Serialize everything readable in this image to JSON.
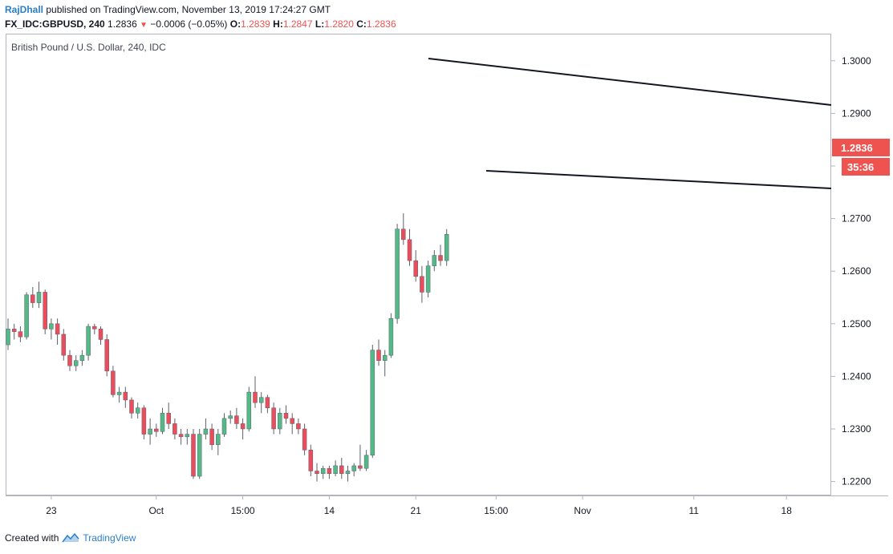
{
  "header": {
    "user": "RajDhall",
    "published": "published on TradingView.com, November 13, 2019 17:24:27 GMT",
    "symbol": "FX_IDC:GBPUSD, 240",
    "last": "1.2836",
    "change": "−0.0006 (−0.05%)",
    "o_label": "O:",
    "o": "1.2839",
    "h_label": "H:",
    "h": "1.2847",
    "l_label": "L:",
    "l": "1.2820",
    "c_label": "C:",
    "c": "1.2836"
  },
  "legend": "British Pound / U.S. Dollar, 240, IDC",
  "footer": {
    "prefix": "Created with",
    "brand": "TradingView"
  },
  "colors": {
    "up": "#53b987",
    "down": "#eb4d5c",
    "wick": "#5d606b",
    "price_tag": "#ef5350",
    "line": "#131722"
  },
  "price_label": "1.2836",
  "countdown_label": "35:36",
  "chart_data": {
    "type": "candlestick",
    "title": "British Pound / U.S. Dollar, 240, IDC",
    "ylim": [
      1.2175,
      1.305
    ],
    "y_ticks": [
      "1.2200",
      "1.2300",
      "1.2400",
      "1.2500",
      "1.2600",
      "1.2700",
      "1.2800",
      "1.2900",
      "1.3000"
    ],
    "x_ticks": [
      {
        "label": "23",
        "i": 7
      },
      {
        "label": "Oct",
        "i": 24
      },
      {
        "label": "15:00",
        "i": 38
      },
      {
        "label": "14",
        "i": 52
      },
      {
        "label": "21",
        "i": 66
      },
      {
        "label": "15:00",
        "i": 79
      },
      {
        "label": "Nov",
        "i": 93
      },
      {
        "label": "11",
        "i": 111
      },
      {
        "label": "18",
        "i": 126
      }
    ],
    "candles": [
      [
        1.246,
        1.251,
        1.245,
        1.249
      ],
      [
        1.249,
        1.25,
        1.247,
        1.2485
      ],
      [
        1.2485,
        1.2495,
        1.2465,
        1.2475
      ],
      [
        1.2475,
        1.256,
        1.247,
        1.2555
      ],
      [
        1.2555,
        1.257,
        1.253,
        1.254
      ],
      [
        1.254,
        1.258,
        1.253,
        1.256
      ],
      [
        1.256,
        1.2565,
        1.248,
        1.249
      ],
      [
        1.249,
        1.251,
        1.247,
        1.25
      ],
      [
        1.25,
        1.251,
        1.246,
        1.248
      ],
      [
        1.248,
        1.249,
        1.243,
        1.244
      ],
      [
        1.244,
        1.245,
        1.241,
        1.242
      ],
      [
        1.242,
        1.244,
        1.241,
        1.243
      ],
      [
        1.243,
        1.245,
        1.242,
        1.244
      ],
      [
        1.244,
        1.25,
        1.243,
        1.2495
      ],
      [
        1.2495,
        1.25,
        1.248,
        1.249
      ],
      [
        1.249,
        1.2495,
        1.246,
        1.247
      ],
      [
        1.247,
        1.248,
        1.24,
        1.241
      ],
      [
        1.241,
        1.242,
        1.236,
        1.2365
      ],
      [
        1.2365,
        1.238,
        1.235,
        1.237
      ],
      [
        1.237,
        1.238,
        1.234,
        1.2355
      ],
      [
        1.2355,
        1.236,
        1.232,
        1.233
      ],
      [
        1.233,
        1.235,
        1.232,
        1.234
      ],
      [
        1.234,
        1.2345,
        1.228,
        1.229
      ],
      [
        1.229,
        1.232,
        1.227,
        1.23
      ],
      [
        1.23,
        1.231,
        1.2285,
        1.2295
      ],
      [
        1.2295,
        1.234,
        1.229,
        1.233
      ],
      [
        1.233,
        1.235,
        1.23,
        1.231
      ],
      [
        1.231,
        1.232,
        1.228,
        1.229
      ],
      [
        1.229,
        1.23,
        1.227,
        1.2285
      ],
      [
        1.2285,
        1.23,
        1.227,
        1.229
      ],
      [
        1.229,
        1.23,
        1.2205,
        1.221
      ],
      [
        1.221,
        1.23,
        1.2205,
        1.229
      ],
      [
        1.229,
        1.232,
        1.228,
        1.23
      ],
      [
        1.23,
        1.231,
        1.226,
        1.227
      ],
      [
        1.227,
        1.23,
        1.225,
        1.229
      ],
      [
        1.229,
        1.233,
        1.2285,
        1.232
      ],
      [
        1.232,
        1.2335,
        1.231,
        1.2325
      ],
      [
        1.2325,
        1.234,
        1.23,
        1.231
      ],
      [
        1.231,
        1.232,
        1.228,
        1.23
      ],
      [
        1.23,
        1.238,
        1.2295,
        1.237
      ],
      [
        1.237,
        1.24,
        1.234,
        1.235
      ],
      [
        1.235,
        1.237,
        1.233,
        1.236
      ],
      [
        1.236,
        1.2365,
        1.233,
        1.234
      ],
      [
        1.234,
        1.235,
        1.229,
        1.23
      ],
      [
        1.23,
        1.234,
        1.229,
        1.233
      ],
      [
        1.233,
        1.2345,
        1.231,
        1.232
      ],
      [
        1.232,
        1.233,
        1.229,
        1.231
      ],
      [
        1.231,
        1.232,
        1.229,
        1.23
      ],
      [
        1.23,
        1.231,
        1.225,
        1.226
      ],
      [
        1.226,
        1.227,
        1.221,
        1.222
      ],
      [
        1.222,
        1.2235,
        1.22,
        1.2215
      ],
      [
        1.2215,
        1.223,
        1.2205,
        1.2225
      ],
      [
        1.2225,
        1.223,
        1.2205,
        1.2215
      ],
      [
        1.2215,
        1.224,
        1.221,
        1.223
      ],
      [
        1.223,
        1.2245,
        1.2205,
        1.2215
      ],
      [
        1.2215,
        1.223,
        1.22,
        1.222
      ],
      [
        1.222,
        1.2235,
        1.221,
        1.223
      ],
      [
        1.223,
        1.227,
        1.222,
        1.2225
      ],
      [
        1.2225,
        1.226,
        1.222,
        1.225
      ],
      [
        1.225,
        1.246,
        1.2245,
        1.245
      ],
      [
        1.245,
        1.247,
        1.242,
        1.243
      ],
      [
        1.243,
        1.245,
        1.24,
        1.244
      ],
      [
        1.244,
        1.252,
        1.2435,
        1.251
      ],
      [
        1.251,
        1.269,
        1.25,
        1.268
      ],
      [
        1.268,
        1.271,
        1.265,
        1.266
      ],
      [
        1.266,
        1.268,
        1.261,
        1.262
      ],
      [
        1.262,
        1.264,
        1.258,
        1.259
      ],
      [
        1.259,
        1.261,
        1.254,
        1.256
      ],
      [
        1.256,
        1.262,
        1.255,
        1.261
      ],
      [
        1.261,
        1.264,
        1.26,
        1.263
      ],
      [
        1.263,
        1.265,
        1.261,
        1.262
      ],
      [
        1.262,
        1.268,
        1.261,
        1.267
      ]
    ]
  }
}
